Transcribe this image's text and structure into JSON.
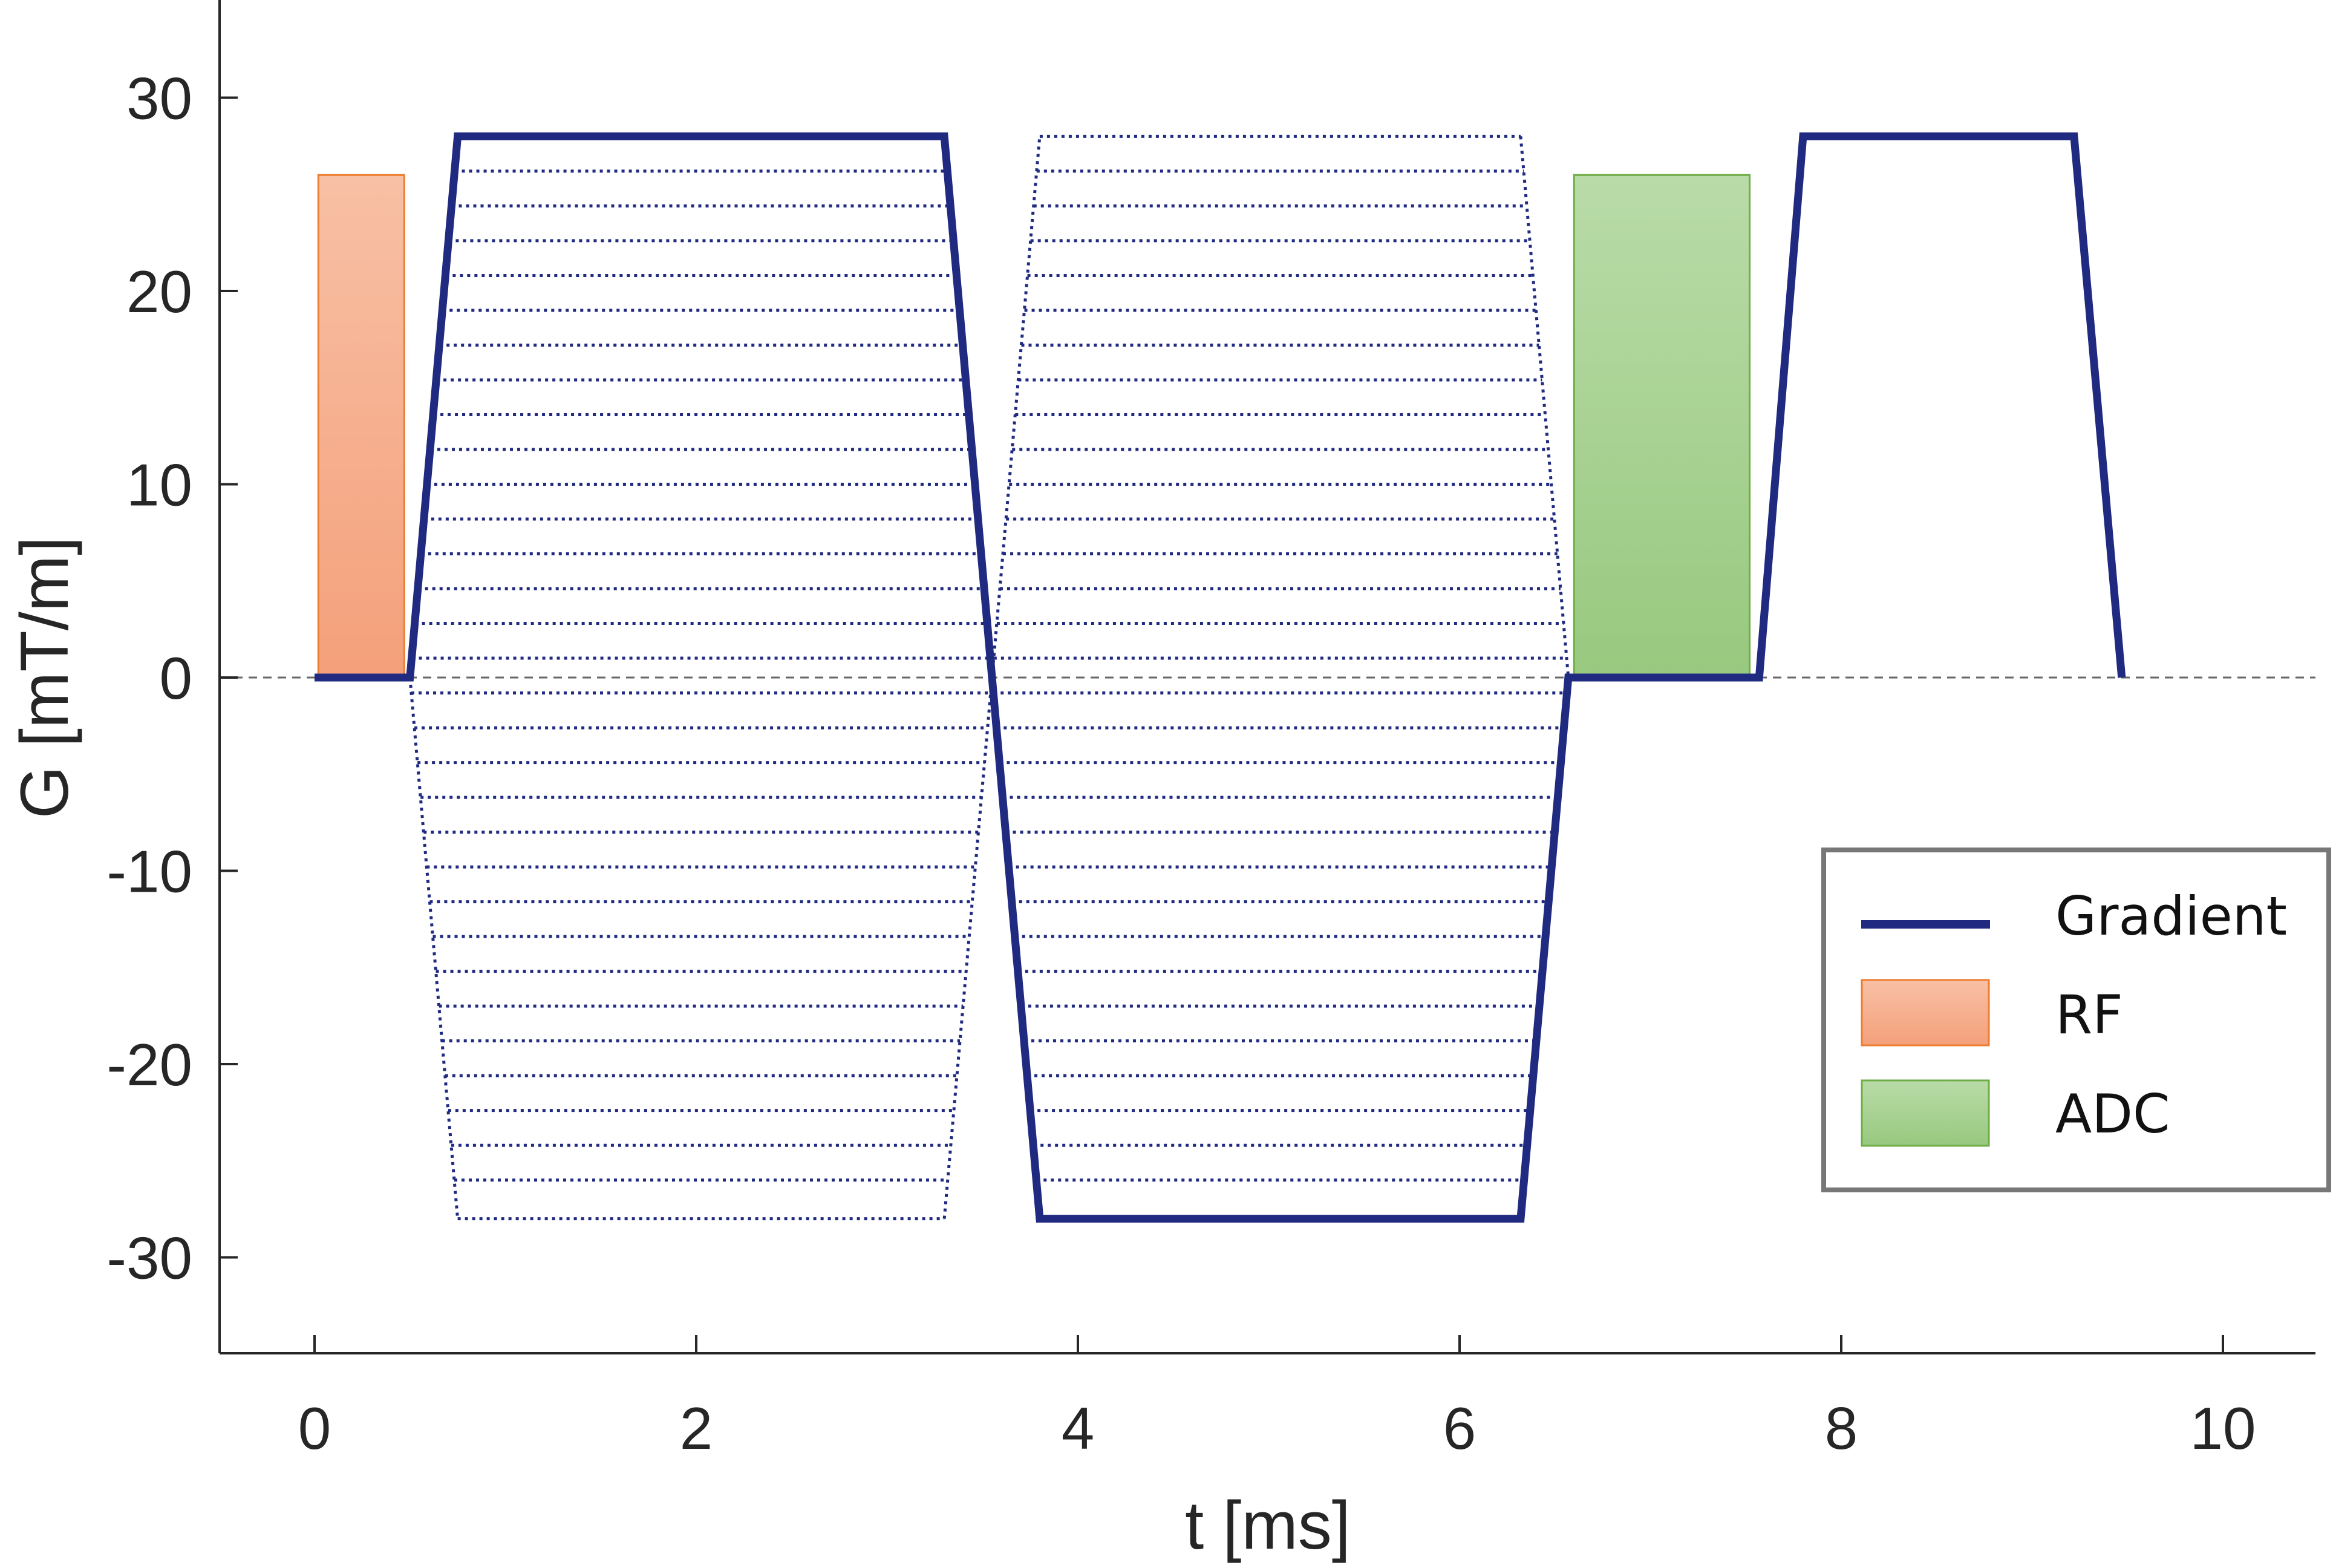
{
  "chart_data": {
    "type": "line",
    "xlabel": "t [ms]",
    "ylabel": "G [mT/m]",
    "xlim": [
      -0.5,
      10.5
    ],
    "ylim": [
      -35,
      35
    ],
    "xticks": [
      0,
      2,
      4,
      6,
      8,
      10
    ],
    "yticks": [
      30,
      20,
      10,
      0,
      -10,
      -20,
      -30
    ],
    "x_tick_labels": [
      "0",
      "2",
      "4",
      "6",
      "8",
      "10"
    ],
    "y_tick_labels": [
      "30",
      "20",
      "10",
      "0",
      "-10",
      "-20",
      "-30"
    ],
    "grid": false,
    "zero_line": "dashed",
    "legend_position": "bottom-right",
    "series": [
      {
        "name": "Gradient",
        "style": "solid",
        "color": "#1f2a80",
        "x": [
          0,
          0.5,
          0.75,
          3.3,
          3.55,
          3.8,
          6.32,
          6.57,
          7.57,
          7.8,
          9.22,
          9.47
        ],
        "y": [
          0,
          0,
          28,
          28,
          0,
          -28,
          -28,
          0,
          0,
          28,
          28,
          0
        ]
      }
    ],
    "phase_encode_steps": {
      "style": "dotted",
      "color": "#1f2a80",
      "levels": [
        28,
        26.2,
        24.4,
        22.6,
        20.8,
        19,
        17.2,
        15.4,
        13.6,
        11.8,
        10,
        8.2,
        6.4,
        4.6,
        2.8,
        1,
        -0.8,
        -2.6,
        -4.4,
        -6.2,
        -8,
        -9.8,
        -11.6,
        -13.4,
        -15.2,
        -17,
        -18.8,
        -20.6,
        -22.4,
        -24.2,
        -26,
        -28
      ],
      "lobe1": {
        "x_start": 0.5,
        "x_plateau_start": 0.75,
        "x_plateau_end": 3.3,
        "x_end": 3.55
      },
      "lobe2": {
        "x_start": 3.55,
        "x_plateau_start": 3.8,
        "x_plateau_end": 6.32,
        "x_end": 6.57
      }
    },
    "blocks": [
      {
        "name": "RF",
        "x_start": 0.02,
        "x_end": 0.47,
        "y_start": 0,
        "y_end": 26,
        "fill_top": "#f8c0a5",
        "fill_bottom": "#f4a07a",
        "border": "#ed7d31"
      },
      {
        "name": "ADC",
        "x_start": 6.6,
        "x_end": 7.52,
        "y_start": 0,
        "y_end": 26,
        "fill_top": "#b9dba8",
        "fill_bottom": "#98c97f",
        "border": "#70ad47"
      }
    ],
    "legend": [
      {
        "label": "Gradient",
        "kind": "line",
        "color": "#1f2a80"
      },
      {
        "label": "RF",
        "kind": "patch",
        "fill_top": "#f8c0a5",
        "fill_bottom": "#f4a07a",
        "border": "#ed7d31"
      },
      {
        "label": "ADC",
        "kind": "patch",
        "fill_top": "#b9dba8",
        "fill_bottom": "#98c97f",
        "border": "#70ad47"
      }
    ]
  }
}
